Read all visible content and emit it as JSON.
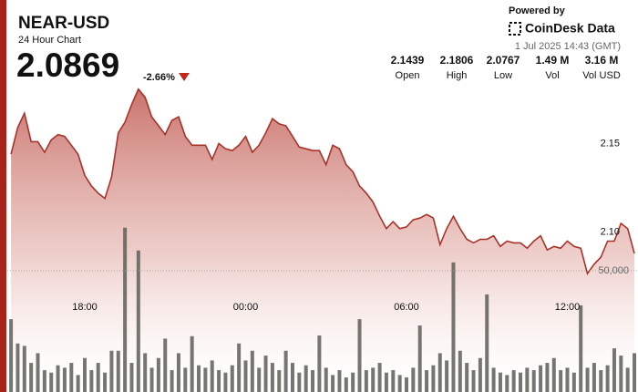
{
  "header": {
    "title": "NEAR-USD",
    "subtitle": "24 Hour Chart",
    "price": "2.0869",
    "change": "-2.66%",
    "powered_by": "Powered by",
    "brand": "CoinDesk Data",
    "timestamp": "1 Jul 2025 14:43 (GMT)"
  },
  "stats": [
    {
      "value": "2.1439",
      "label": "Open"
    },
    {
      "value": "2.1806",
      "label": "High"
    },
    {
      "value": "2.0767",
      "label": "Low"
    },
    {
      "value": "1.49 M",
      "label": "Vol"
    },
    {
      "value": "3.16 M",
      "label": "Vol USD"
    }
  ],
  "chart_data": {
    "type": "line",
    "categories": [
      null,
      null,
      null,
      null,
      null,
      null,
      null,
      null,
      null,
      null,
      null,
      "18:00",
      null,
      null,
      null,
      null,
      null,
      null,
      null,
      null,
      null,
      null,
      null,
      null,
      null,
      null,
      null,
      null,
      null,
      null,
      null,
      null,
      null,
      null,
      null,
      "00:00",
      null,
      null,
      null,
      null,
      null,
      null,
      null,
      null,
      null,
      null,
      null,
      null,
      null,
      null,
      null,
      null,
      null,
      null,
      null,
      null,
      null,
      null,
      null,
      "06:00",
      null,
      null,
      null,
      null,
      null,
      null,
      null,
      null,
      null,
      null,
      null,
      null,
      null,
      null,
      null,
      null,
      null,
      null,
      null,
      null,
      null,
      null,
      null,
      "12:00",
      null,
      null,
      null,
      null,
      null,
      null,
      null,
      null,
      null,
      null
    ],
    "series": [
      {
        "type": "area",
        "color": "#a8322a",
        "values": [
          2.144,
          2.159,
          2.167,
          2.151,
          2.151,
          2.145,
          2.152,
          2.155,
          2.154,
          2.149,
          2.144,
          2.132,
          2.126,
          2.122,
          2.119,
          2.131,
          2.156,
          2.162,
          2.172,
          2.1806,
          2.176,
          2.165,
          2.16,
          2.155,
          2.163,
          2.165,
          2.154,
          2.149,
          2.149,
          2.149,
          2.141,
          2.15,
          2.147,
          2.146,
          2.149,
          2.154,
          2.145,
          2.149,
          2.156,
          2.164,
          2.161,
          2.16,
          2.154,
          2.148,
          2.147,
          2.146,
          2.146,
          2.138,
          2.149,
          2.147,
          2.138,
          2.134,
          2.126,
          2.122,
          2.117,
          2.109,
          2.102,
          2.106,
          2.102,
          2.103,
          2.107,
          2.108,
          2.11,
          2.108,
          2.093,
          2.102,
          2.109,
          2.102,
          2.096,
          2.094,
          2.096,
          2.096,
          2.098,
          2.092,
          2.095,
          2.094,
          2.094,
          2.091,
          2.095,
          2.098,
          2.09,
          2.092,
          2.091,
          2.095,
          2.092,
          2.091,
          2.0767,
          2.082,
          2.086,
          2.095,
          2.095,
          2.105,
          2.102,
          2.088
        ]
      },
      {
        "type": "bar",
        "axis": "y2",
        "color": "#5e5e58",
        "values": [
          30000,
          20000,
          19000,
          12000,
          16000,
          9000,
          8000,
          11000,
          10000,
          12000,
          7000,
          14000,
          9000,
          12000,
          8000,
          17000,
          17000,
          67700,
          12000,
          58300,
          16000,
          10000,
          14000,
          22000,
          9000,
          16000,
          10000,
          23000,
          11000,
          10000,
          13000,
          9000,
          8000,
          11000,
          20000,
          13000,
          17000,
          10000,
          15000,
          12000,
          9000,
          17000,
          12000,
          8000,
          11000,
          9000,
          23300,
          10000,
          7000,
          9000,
          6000,
          8000,
          30000,
          9000,
          10000,
          12000,
          8000,
          9000,
          7000,
          6000,
          10000,
          27400,
          9000,
          11000,
          16000,
          13000,
          53400,
          17000,
          12000,
          9000,
          14000,
          40200,
          10000,
          8000,
          7000,
          9000,
          8000,
          10000,
          9000,
          11000,
          12000,
          14000,
          9000,
          10000,
          8000,
          35700,
          10000,
          12000,
          9000,
          11000,
          18000,
          15000,
          10000,
          16000
        ]
      }
    ],
    "ylim": [
      2.01,
      2.2
    ],
    "yticks": [
      {
        "value": 2.1,
        "label": "2.10"
      },
      2.15
    ],
    "y2lim": [
      0,
      139000
    ],
    "y2ticks": [
      {
        "value": 50000,
        "label": "50,000"
      }
    ],
    "grid": false
  }
}
